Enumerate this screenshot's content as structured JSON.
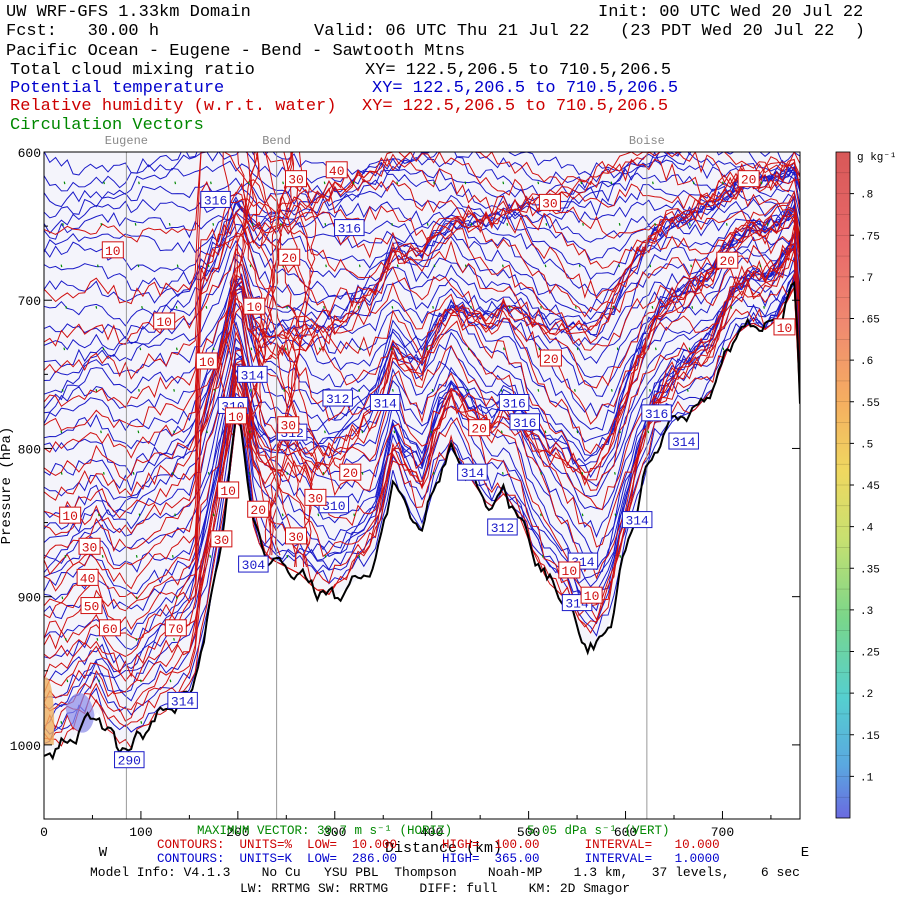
{
  "header": {
    "title": "UW WRF-GFS 1.33km Domain",
    "init": "Init: 00 UTC Wed 20 Jul 22",
    "fcst": "Fcst:   30.00 h",
    "valid": "Valid: 06 UTC Thu 21 Jul 22   (23 PDT Wed 20 Jul 22  )",
    "region": "Pacific Ocean - Eugene - Bend - Sawtooth Mtns",
    "field1": "Total cloud mixing ratio",
    "field1_xy": "XY= 122.5,206.5 to 710.5,206.5",
    "field2": "Potential temperature",
    "field2_xy": "XY= 122.5,206.5 to 710.5,206.5",
    "field3": "Relative humidity (w.r.t. water)",
    "field3_xy": "XY= 122.5,206.5 to 710.5,206.5",
    "field4": "Circulation Vectors"
  },
  "colors": {
    "theta": "#1a1ac8",
    "rh": "#d01010",
    "vectors": "#008800",
    "terrain": "#000000",
    "fill_bg": "#f4f4fb"
  },
  "chart_data": {
    "type": "cross-section",
    "xlabel": "Distance (km)",
    "ylabel": "Pressure (hPa)",
    "xlim": [
      0,
      780
    ],
    "ylim": [
      1050,
      600
    ],
    "x_ticks": [
      "0",
      "100",
      "200",
      "300",
      "400",
      "500",
      "600",
      "700"
    ],
    "x_tick_values": [
      0,
      100,
      200,
      300,
      400,
      500,
      600,
      700
    ],
    "y_ticks": [
      "600",
      "700",
      "800",
      "900",
      "1000"
    ],
    "y_tick_values": [
      600,
      700,
      800,
      900,
      1000
    ],
    "west_label": "W",
    "east_label": "E",
    "cities": [
      {
        "name": "Eugene",
        "x": 85
      },
      {
        "name": "Bend",
        "x": 240
      },
      {
        "name": "Boise",
        "x": 622
      }
    ],
    "terrain_profile": [
      [
        0,
        1005
      ],
      [
        15,
        1002
      ],
      [
        30,
        995
      ],
      [
        45,
        985
      ],
      [
        55,
        978
      ],
      [
        65,
        990
      ],
      [
        75,
        1000
      ],
      [
        90,
        1002
      ],
      [
        110,
        985
      ],
      [
        130,
        975
      ],
      [
        150,
        965
      ],
      [
        165,
        930
      ],
      [
        175,
        890
      ],
      [
        185,
        850
      ],
      [
        195,
        800
      ],
      [
        200,
        770
      ],
      [
        205,
        790
      ],
      [
        215,
        850
      ],
      [
        225,
        870
      ],
      [
        235,
        875
      ],
      [
        250,
        880
      ],
      [
        265,
        885
      ],
      [
        280,
        895
      ],
      [
        300,
        900
      ],
      [
        320,
        890
      ],
      [
        340,
        880
      ],
      [
        350,
        855
      ],
      [
        360,
        820
      ],
      [
        375,
        840
      ],
      [
        390,
        855
      ],
      [
        405,
        820
      ],
      [
        420,
        800
      ],
      [
        440,
        820
      ],
      [
        460,
        840
      ],
      [
        475,
        830
      ],
      [
        490,
        845
      ],
      [
        505,
        870
      ],
      [
        520,
        890
      ],
      [
        540,
        905
      ],
      [
        555,
        930
      ],
      [
        570,
        935
      ],
      [
        585,
        915
      ],
      [
        600,
        870
      ],
      [
        615,
        830
      ],
      [
        630,
        800
      ],
      [
        650,
        780
      ],
      [
        670,
        775
      ],
      [
        690,
        760
      ],
      [
        710,
        725
      ],
      [
        730,
        715
      ],
      [
        745,
        720
      ],
      [
        760,
        710
      ],
      [
        775,
        690
      ],
      [
        780,
        770
      ]
    ],
    "theta_labels": [
      {
        "text": "316",
        "x": 177,
        "p": 632
      },
      {
        "text": "316",
        "x": 315,
        "p": 651
      },
      {
        "text": "314",
        "x": 215,
        "p": 750
      },
      {
        "text": "314",
        "x": 352,
        "p": 769
      },
      {
        "text": "312",
        "x": 303,
        "p": 766
      },
      {
        "text": "312",
        "x": 256,
        "p": 789
      },
      {
        "text": "316",
        "x": 485,
        "p": 769
      },
      {
        "text": "316",
        "x": 496,
        "p": 782
      },
      {
        "text": "316",
        "x": 632,
        "p": 776
      },
      {
        "text": "314",
        "x": 660,
        "p": 795
      },
      {
        "text": "314",
        "x": 442,
        "p": 816
      },
      {
        "text": "310",
        "x": 299,
        "p": 838
      },
      {
        "text": "310",
        "x": 195,
        "p": 771
      },
      {
        "text": "312",
        "x": 473,
        "p": 853
      },
      {
        "text": "314",
        "x": 556,
        "p": 876
      },
      {
        "text": "314",
        "x": 612,
        "p": 848
      },
      {
        "text": "314",
        "x": 550,
        "p": 904
      },
      {
        "text": "304",
        "x": 216,
        "p": 878
      },
      {
        "text": "314",
        "x": 143,
        "p": 970
      },
      {
        "text": "290",
        "x": 88,
        "p": 1010
      }
    ],
    "rh_labels": [
      {
        "text": "30",
        "x": 260,
        "p": 618
      },
      {
        "text": "40",
        "x": 302,
        "p": 612
      },
      {
        "text": "30",
        "x": 522,
        "p": 634
      },
      {
        "text": "20",
        "x": 727,
        "p": 618
      },
      {
        "text": "10",
        "x": 71,
        "p": 666
      },
      {
        "text": "20",
        "x": 253,
        "p": 671
      },
      {
        "text": "20",
        "x": 705,
        "p": 673
      },
      {
        "text": "10",
        "x": 217,
        "p": 704
      },
      {
        "text": "10",
        "x": 124,
        "p": 714
      },
      {
        "text": "10",
        "x": 168,
        "p": 741
      },
      {
        "text": "20",
        "x": 523,
        "p": 739
      },
      {
        "text": "10",
        "x": 764,
        "p": 718
      },
      {
        "text": "10",
        "x": 198,
        "p": 778
      },
      {
        "text": "30",
        "x": 252,
        "p": 784
      },
      {
        "text": "20",
        "x": 449,
        "p": 786
      },
      {
        "text": "20",
        "x": 316,
        "p": 816
      },
      {
        "text": "10",
        "x": 190,
        "p": 828
      },
      {
        "text": "30",
        "x": 280,
        "p": 833
      },
      {
        "text": "20",
        "x": 221,
        "p": 841
      },
      {
        "text": "10",
        "x": 27,
        "p": 845
      },
      {
        "text": "30",
        "x": 183,
        "p": 861
      },
      {
        "text": "30",
        "x": 260,
        "p": 859
      },
      {
        "text": "30",
        "x": 47,
        "p": 866
      },
      {
        "text": "40",
        "x": 45,
        "p": 887
      },
      {
        "text": "10",
        "x": 542,
        "p": 882
      },
      {
        "text": "50",
        "x": 49,
        "p": 906
      },
      {
        "text": "60",
        "x": 68,
        "p": 921
      },
      {
        "text": "70",
        "x": 136,
        "p": 921
      },
      {
        "text": "10",
        "x": 565,
        "p": 899
      }
    ],
    "colorbar": {
      "unit": "g kg⁻¹",
      "labels": [
        ".8",
        ".75",
        ".7",
        ".65",
        ".6",
        ".55",
        ".5",
        ".45",
        ".4",
        ".35",
        ".3",
        ".25",
        ".2",
        ".15",
        ".1"
      ],
      "values": [
        0.8,
        0.75,
        0.7,
        0.65,
        0.6,
        0.55,
        0.5,
        0.45,
        0.4,
        0.35,
        0.3,
        0.25,
        0.2,
        0.15,
        0.1
      ],
      "range": [
        0.05,
        0.85
      ]
    }
  },
  "footer": {
    "max_vector": "MAXIMUM VECTOR: 30.7 m s⁻¹ (HORIZ)",
    "max_vector_vert": "5.05 dPa s⁻¹ (VERT)",
    "distance_label": "Distance (km)",
    "rh_contours": "CONTOURS:  UNITS=%  LOW=  10.000      HIGH=  100.00      INTERVAL=   10.000",
    "theta_contours": "CONTOURS:  UNITS=K  LOW=  286.00      HIGH=  365.00      INTERVAL=   1.0000",
    "model_info": "Model Info: V4.1.3    No Cu   YSU PBL  Thompson    Noah-MP    1.3 km,   37 levels,    6 sec",
    "model_info2": "LW: RRTMG SW: RRTMG    DIFF: full    KM: 2D Smagor"
  }
}
